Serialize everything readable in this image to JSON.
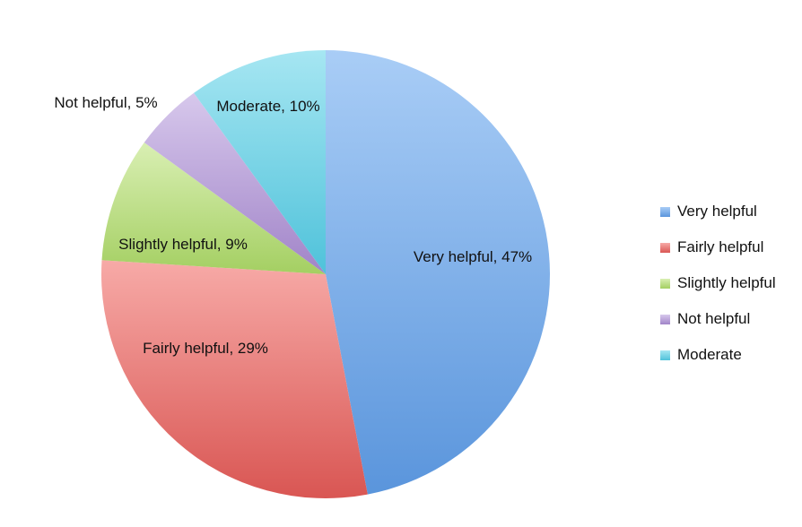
{
  "chart_data": {
    "type": "pie",
    "title": "",
    "slices": [
      {
        "label": "Very helpful",
        "value": 47,
        "data_label": "Very helpful, 47%",
        "color": "#7aaee8",
        "color_light": "#a9cdf6",
        "color_dark": "#5a95dc"
      },
      {
        "label": "Fairly helpful",
        "value": 29,
        "data_label": "Fairly helpful, 29%",
        "color": "#ec8d8a",
        "color_light": "#f7aaa7",
        "color_dark": "#d95653"
      },
      {
        "label": "Slightly helpful",
        "value": 9,
        "data_label": "Slightly helpful, 9%",
        "color": "#bfe08c",
        "color_light": "#d9efb3",
        "color_dark": "#a4cf62"
      },
      {
        "label": "Not helpful",
        "value": 5,
        "data_label": "Not helpful, 5%",
        "color": "#c0a8db",
        "color_light": "#d7c8ec",
        "color_dark": "#a184c8"
      },
      {
        "label": "Moderate",
        "value": 10,
        "data_label": "Moderate, 10%",
        "color": "#72d3e6",
        "color_light": "#a6e6f2",
        "color_dark": "#4fc2da"
      }
    ],
    "legend": {
      "position": "right",
      "items": [
        "Very helpful",
        "Fairly helpful",
        "Slightly helpful",
        "Not helpful",
        "Moderate"
      ]
    }
  }
}
